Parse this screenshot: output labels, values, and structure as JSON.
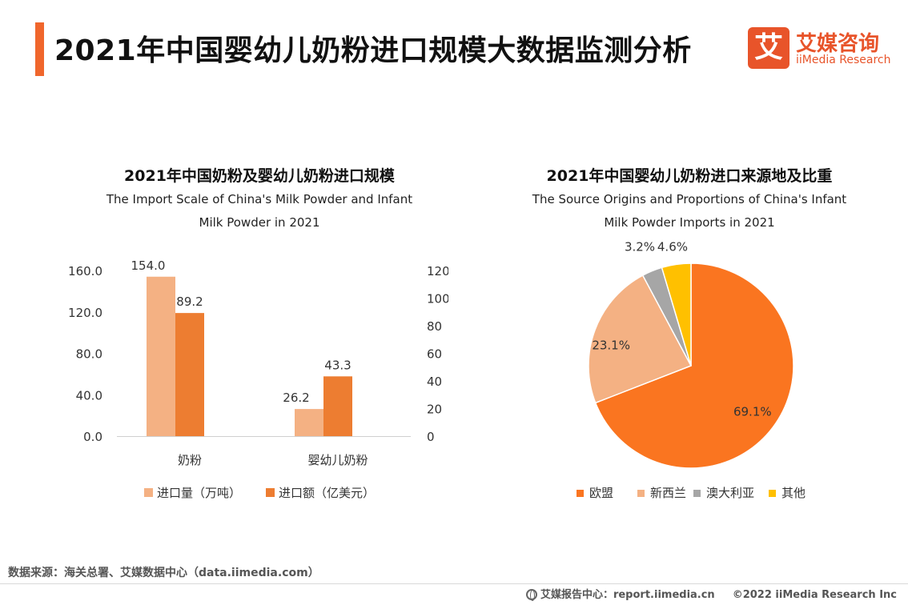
{
  "header": {
    "title": "2021年中国婴幼儿奶粉进口规模大数据监测分析",
    "logo_mark": "艾",
    "logo_cn": "艾媒咨询",
    "logo_en": "iiMedia Research",
    "accent_color": "#f0662c"
  },
  "chart_data": [
    {
      "type": "bar",
      "title": "2021年中国奶粉及婴幼儿奶粉进口规模",
      "subtitle_line1": "The Import Scale of China's Milk Powder and Infant",
      "subtitle_line2": "Milk Powder in 2021",
      "categories": [
        "奶粉",
        "婴幼儿奶粉"
      ],
      "series": [
        {
          "name": "进口量（万吨）",
          "axis": "left",
          "color": "#f4b183",
          "values": [
            154.0,
            26.2
          ],
          "labels": [
            "154.0",
            "26.2"
          ]
        },
        {
          "name": "进口额（亿美元）",
          "axis": "right",
          "color": "#ed7d31",
          "values": [
            89.2,
            43.3
          ],
          "labels": [
            "89.2",
            "43.3"
          ]
        }
      ],
      "left_axis": {
        "ylim": [
          0,
          160
        ],
        "ticks": [
          "0.0",
          "40.0",
          "80.0",
          "120.0",
          "160.0"
        ]
      },
      "right_axis": {
        "ylim": [
          0,
          120
        ],
        "ticks": [
          "0",
          "20",
          "40",
          "60",
          "80",
          "100",
          "120"
        ]
      },
      "legend_position": "bottom"
    },
    {
      "type": "pie",
      "title": "2021年中国婴幼儿奶粉进口来源地及比重",
      "subtitle_line1": "The Source Origins and Proportions of China's Infant",
      "subtitle_line2": "Milk Powder Imports in 2021",
      "slices": [
        {
          "name": "欧盟",
          "value": 69.1,
          "label": "69.1%",
          "color": "#fa7520"
        },
        {
          "name": "新西兰",
          "value": 23.1,
          "label": "23.1%",
          "color": "#f4b183"
        },
        {
          "name": "澳大利亚",
          "value": 3.2,
          "label": "3.2%",
          "color": "#a6a6a6"
        },
        {
          "name": "其他",
          "value": 4.6,
          "label": "4.6%",
          "color": "#ffc000"
        }
      ],
      "legend_position": "bottom"
    }
  ],
  "footer": {
    "source": "数据来源：海关总署、艾媒数据中心（data.iimedia.com）",
    "report_center": "艾媒报告中心：report.iimedia.cn",
    "copyright": "©2022  iiMedia Research  Inc"
  }
}
